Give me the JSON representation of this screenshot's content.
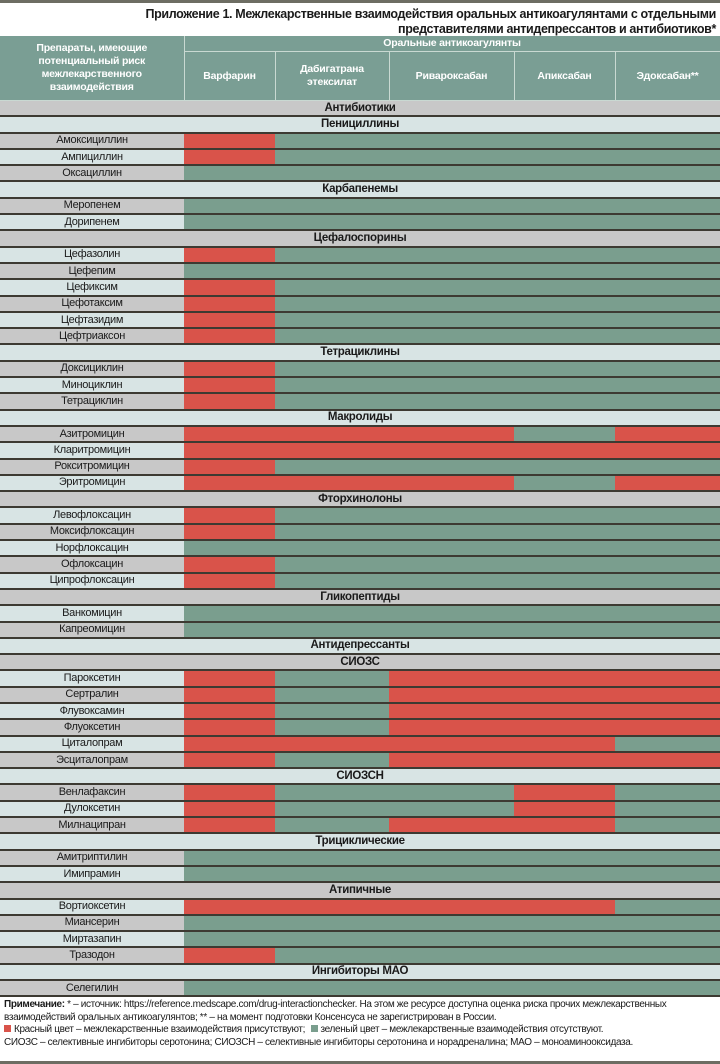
{
  "title": "Приложение 1. Межлекарственные взаимодействия оральных антикоагулянтами с отдельными представителями антидепрессантов и антибиотиков*",
  "header": {
    "row_header": "Препараты, имеющие потенциальный риск межлекарственного взаимодействия",
    "group_header": "Оральные антикоагулянты",
    "columns": [
      "Варфарин",
      "Дабигатрана этексилат",
      "Ривароксабан",
      "Апиксабан",
      "Эдоксабан**"
    ]
  },
  "colors": {
    "red": "#d9534a",
    "green": "#7a9e8e",
    "header": "#7a9e94"
  },
  "rows": [
    {
      "type": "section",
      "label": "Антибиотики"
    },
    {
      "type": "section",
      "label": "Пенициллины"
    },
    {
      "type": "drug",
      "label": "Амоксициллин",
      "cells": [
        "red",
        "green",
        "green",
        "green",
        "green"
      ]
    },
    {
      "type": "drug",
      "label": "Ампициллин",
      "cells": [
        "red",
        "green",
        "green",
        "green",
        "green"
      ]
    },
    {
      "type": "drug",
      "label": "Оксациллин",
      "cells": [
        "green",
        "green",
        "green",
        "green",
        "green"
      ]
    },
    {
      "type": "section",
      "label": "Карбапенемы"
    },
    {
      "type": "drug",
      "label": "Меропенем",
      "cells": [
        "green",
        "green",
        "green",
        "green",
        "green"
      ]
    },
    {
      "type": "drug",
      "label": "Дорипенем",
      "cells": [
        "green",
        "green",
        "green",
        "green",
        "green"
      ]
    },
    {
      "type": "section",
      "label": "Цефалоспорины"
    },
    {
      "type": "drug",
      "label": "Цефазолин",
      "cells": [
        "red",
        "green",
        "green",
        "green",
        "green"
      ]
    },
    {
      "type": "drug",
      "label": "Цефепим",
      "cells": [
        "green",
        "green",
        "green",
        "green",
        "green"
      ]
    },
    {
      "type": "drug",
      "label": "Цефиксим",
      "cells": [
        "red",
        "green",
        "green",
        "green",
        "green"
      ]
    },
    {
      "type": "drug",
      "label": "Цефотаксим",
      "cells": [
        "red",
        "green",
        "green",
        "green",
        "green"
      ]
    },
    {
      "type": "drug",
      "label": "Цефтазидим",
      "cells": [
        "red",
        "green",
        "green",
        "green",
        "green"
      ]
    },
    {
      "type": "drug",
      "label": "Цефтриаксон",
      "cells": [
        "red",
        "green",
        "green",
        "green",
        "green"
      ]
    },
    {
      "type": "section",
      "label": "Тетрациклины"
    },
    {
      "type": "drug",
      "label": "Доксициклин",
      "cells": [
        "red",
        "green",
        "green",
        "green",
        "green"
      ]
    },
    {
      "type": "drug",
      "label": "Миноциклин",
      "cells": [
        "red",
        "green",
        "green",
        "green",
        "green"
      ]
    },
    {
      "type": "drug",
      "label": "Тетрациклин",
      "cells": [
        "red",
        "green",
        "green",
        "green",
        "green"
      ]
    },
    {
      "type": "section",
      "label": "Макролиды"
    },
    {
      "type": "drug",
      "label": "Азитромицин",
      "cells": [
        "red",
        "red",
        "red",
        "green",
        "red"
      ]
    },
    {
      "type": "drug",
      "label": "Кларитромицин",
      "cells": [
        "red",
        "red",
        "red",
        "red",
        "red"
      ]
    },
    {
      "type": "drug",
      "label": "Рокситромицин",
      "cells": [
        "red",
        "green",
        "green",
        "green",
        "green"
      ]
    },
    {
      "type": "drug",
      "label": "Эритромицин",
      "cells": [
        "red",
        "red",
        "red",
        "green",
        "red"
      ]
    },
    {
      "type": "section",
      "label": "Фторхинолоны"
    },
    {
      "type": "drug",
      "label": "Левофлоксацин",
      "cells": [
        "red",
        "green",
        "green",
        "green",
        "green"
      ]
    },
    {
      "type": "drug",
      "label": "Моксифлоксацин",
      "cells": [
        "red",
        "green",
        "green",
        "green",
        "green"
      ]
    },
    {
      "type": "drug",
      "label": "Норфлоксацин",
      "cells": [
        "green",
        "green",
        "green",
        "green",
        "green"
      ]
    },
    {
      "type": "drug",
      "label": "Офлоксацин",
      "cells": [
        "red",
        "green",
        "green",
        "green",
        "green"
      ]
    },
    {
      "type": "drug",
      "label": "Ципрофлоксацин",
      "cells": [
        "red",
        "green",
        "green",
        "green",
        "green"
      ]
    },
    {
      "type": "section",
      "label": "Гликопептиды"
    },
    {
      "type": "drug",
      "label": "Ванкомицин",
      "cells": [
        "green",
        "green",
        "green",
        "green",
        "green"
      ]
    },
    {
      "type": "drug",
      "label": "Капреомицин",
      "cells": [
        "green",
        "green",
        "green",
        "green",
        "green"
      ]
    },
    {
      "type": "section",
      "label": "Антидепрессанты"
    },
    {
      "type": "section",
      "label": "СИОЗС"
    },
    {
      "type": "drug",
      "label": "Пароксетин",
      "cells": [
        "red",
        "green",
        "red",
        "red",
        "red"
      ]
    },
    {
      "type": "drug",
      "label": "Сертралин",
      "cells": [
        "red",
        "green",
        "red",
        "red",
        "red"
      ]
    },
    {
      "type": "drug",
      "label": "Флувоксамин",
      "cells": [
        "red",
        "green",
        "red",
        "red",
        "red"
      ]
    },
    {
      "type": "drug",
      "label": "Флуоксетин",
      "cells": [
        "red",
        "green",
        "red",
        "red",
        "red"
      ]
    },
    {
      "type": "drug",
      "label": "Циталопрам",
      "cells": [
        "red",
        "red",
        "red",
        "red",
        "green"
      ]
    },
    {
      "type": "drug",
      "label": "Эсциталопрам",
      "cells": [
        "red",
        "green",
        "red",
        "red",
        "red"
      ]
    },
    {
      "type": "section",
      "label": "СИОЗСН"
    },
    {
      "type": "drug",
      "label": "Венлафаксин",
      "cells": [
        "red",
        "green",
        "green",
        "red",
        "green"
      ]
    },
    {
      "type": "drug",
      "label": "Дулоксетин",
      "cells": [
        "red",
        "green",
        "green",
        "red",
        "green"
      ]
    },
    {
      "type": "drug",
      "label": "Милнаципран",
      "cells": [
        "red",
        "green",
        "red",
        "red",
        "green"
      ]
    },
    {
      "type": "section",
      "label": "Трициклические"
    },
    {
      "type": "drug",
      "label": "Амитриптилин",
      "cells": [
        "green",
        "green",
        "green",
        "green",
        "green"
      ]
    },
    {
      "type": "drug",
      "label": "Имипрамин",
      "cells": [
        "green",
        "green",
        "green",
        "green",
        "green"
      ]
    },
    {
      "type": "section",
      "label": "Атипичные"
    },
    {
      "type": "drug",
      "label": "Вортиоксетин",
      "cells": [
        "red",
        "red",
        "red",
        "red",
        "green"
      ]
    },
    {
      "type": "drug",
      "label": "Миансерин",
      "cells": [
        "green",
        "green",
        "green",
        "green",
        "green"
      ]
    },
    {
      "type": "drug",
      "label": "Миртазапин",
      "cells": [
        "green",
        "green",
        "green",
        "green",
        "green"
      ]
    },
    {
      "type": "drug",
      "label": "Тразодон",
      "cells": [
        "red",
        "green",
        "green",
        "green",
        "green"
      ]
    },
    {
      "type": "section",
      "label": "Ингибиторы МАО"
    },
    {
      "type": "drug",
      "label": "Селегилин",
      "cells": [
        "green",
        "green",
        "green",
        "green",
        "green"
      ]
    }
  ],
  "notes": {
    "label": "Примечание:",
    "line1": " * – источник: https://reference.medscape.com/drug-interactionchecker. На этом же ресурсе доступна оценка риска прочих межлекарственных взаимодействий оральных антикоагулянтов; ** – на момент подготовки Консенсуса не зарегистрирован в России.",
    "legend_red": "Красный цвет – межлекарственные взаимодействия присутствуют;",
    "legend_green": "зеленый цвет – межлекарственные взаимодействия отсутствуют.",
    "abbreviations": "СИОЗС – селективные ингибиторы серотонина; СИОЗСН – селективные ингибиторы серотонина и норадреналина; МАО – моноаминооксидаза."
  }
}
